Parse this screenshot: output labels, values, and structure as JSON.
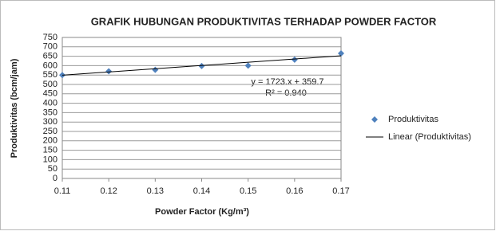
{
  "chart_data": {
    "type": "scatter",
    "title": "GRAFIK HUBUNGAN PRODUKTIVITAS TERHADAP POWDER FACTOR",
    "x_label": "Powder Factor (Kg/m³)",
    "y_label": "Produktivitas (bcm/jam)",
    "series": [
      {
        "name": "Produktivitas",
        "color": "#4f81bd",
        "marker": "diamond",
        "x": [
          0.11,
          0.12,
          0.13,
          0.14,
          0.15,
          0.16,
          0.17
        ],
        "values": [
          550,
          570,
          578,
          598,
          600,
          632,
          665
        ]
      },
      {
        "name": "Linear (Produktivitas)",
        "color": "#000000",
        "marker": "line",
        "x": [
          0.11,
          0.17
        ],
        "values": [
          549.2,
          652.6
        ]
      }
    ],
    "annotations": [
      "y = 1723.x + 359.7",
      "R² = 0.940"
    ],
    "xlim": [
      0.11,
      0.17
    ],
    "xticks": [
      0.11,
      0.12,
      0.13,
      0.14,
      0.15,
      0.16,
      0.17
    ],
    "ylim": [
      0,
      750
    ],
    "yticks": [
      0,
      50,
      100,
      150,
      200,
      250,
      300,
      350,
      400,
      450,
      500,
      550,
      600,
      650,
      700,
      750
    ],
    "grid": true,
    "legend": "right"
  }
}
